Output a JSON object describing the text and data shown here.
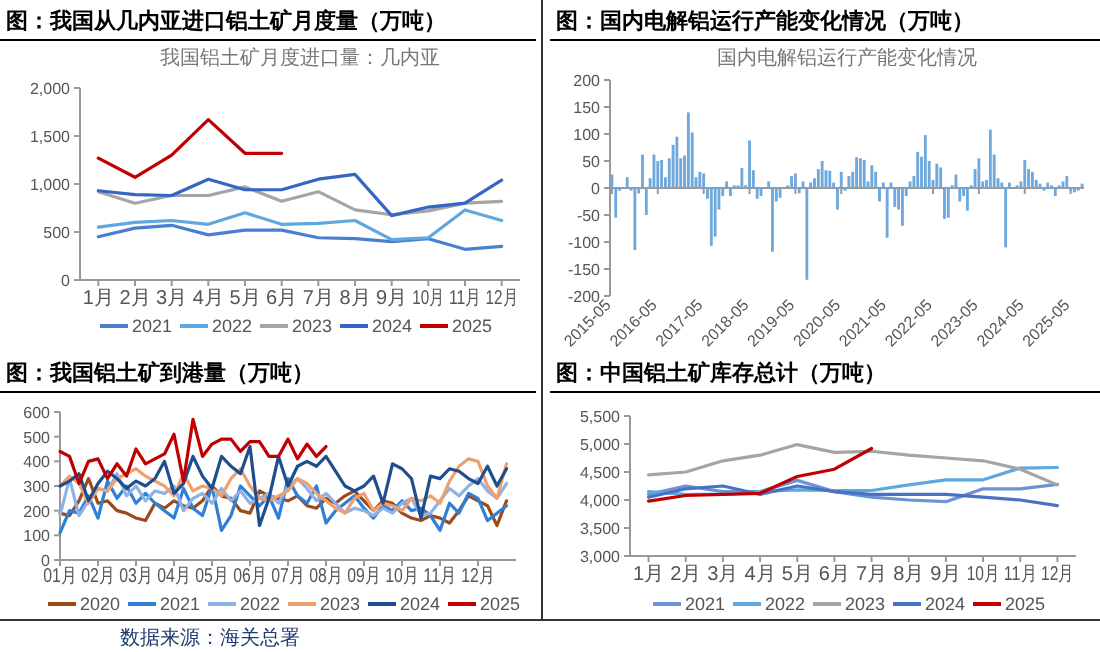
{
  "chart_data": [
    {
      "type": "line",
      "title": "图：我国从几内亚进口铝土矿月度量（万吨）",
      "subtitle": "我国铝土矿月度进口量：几内亚",
      "categories": [
        "1月",
        "2月",
        "3月",
        "4月",
        "5月",
        "6月",
        "7月",
        "8月",
        "9月",
        "10月",
        "11月",
        "12月"
      ],
      "ylim": [
        0,
        2000
      ],
      "yticks": [
        0,
        {
          "value": 500,
          "label": "500"
        },
        {
          "value": 1000,
          "label": "1,000"
        },
        {
          "value": 1500,
          "label": "1,500"
        },
        {
          "value": 2000,
          "label": "2,000"
        }
      ],
      "legend": "bottom",
      "series": [
        {
          "name": "2021",
          "color": "#4a7fd0",
          "values": [
            450,
            540,
            570,
            470,
            520,
            520,
            440,
            430,
            400,
            430,
            320,
            350
          ]
        },
        {
          "name": "2022",
          "color": "#5ea8e0",
          "values": [
            550,
            600,
            620,
            580,
            700,
            580,
            590,
            620,
            420,
            440,
            730,
            620
          ]
        },
        {
          "name": "2023",
          "color": "#a5a5a5",
          "values": [
            920,
            800,
            880,
            880,
            970,
            820,
            920,
            730,
            680,
            720,
            800,
            820
          ]
        },
        {
          "name": "2024",
          "color": "#3566c4",
          "values": [
            930,
            890,
            880,
            1050,
            940,
            940,
            1050,
            1100,
            670,
            760,
            800,
            1040
          ]
        },
        {
          "name": "2025",
          "color": "#c00000",
          "values": [
            1270,
            1070,
            1300,
            1670,
            1320,
            1320,
            null,
            null,
            null,
            null,
            null,
            null
          ]
        }
      ]
    },
    {
      "type": "bar",
      "title": "图：国内电解铝运行产能变化情况（万吨）",
      "subtitle": "国内电解铝运行产能变化情况",
      "color": "#6fa8dc",
      "categories": [
        "2015-05",
        null,
        null,
        null,
        null,
        null,
        null,
        null,
        null,
        null,
        null,
        null,
        "2016-05",
        null,
        null,
        null,
        null,
        null,
        null,
        null,
        null,
        null,
        null,
        null,
        "2017-05",
        null,
        null,
        null,
        null,
        null,
        null,
        null,
        null,
        null,
        null,
        null,
        "2018-05",
        null,
        null,
        null,
        null,
        null,
        null,
        null,
        null,
        null,
        null,
        null,
        "2019-05",
        null,
        null,
        null,
        null,
        null,
        null,
        null,
        null,
        null,
        null,
        null,
        "2020-05",
        null,
        null,
        null,
        null,
        null,
        null,
        null,
        null,
        null,
        null,
        null,
        "2021-05",
        null,
        null,
        null,
        null,
        null,
        null,
        null,
        null,
        null,
        null,
        null,
        "2022-05",
        null,
        null,
        null,
        null,
        null,
        null,
        null,
        null,
        null,
        null,
        null,
        "2023-05",
        null,
        null,
        null,
        null,
        null,
        null,
        null,
        null,
        null,
        null,
        null,
        "2024-05",
        null,
        null,
        null,
        null,
        null,
        null,
        null,
        null,
        null,
        null,
        null,
        "2025-05",
        null,
        null,
        null
      ],
      "ylim": [
        -200,
        200
      ],
      "yticks": [
        -200,
        -150,
        -100,
        -50,
        0,
        50,
        100,
        150,
        200
      ],
      "values": [
        25,
        -55,
        -5,
        0,
        20,
        -5,
        -115,
        -10,
        62,
        -50,
        18,
        62,
        50,
        52,
        20,
        55,
        80,
        95,
        55,
        60,
        140,
        103,
        20,
        30,
        27,
        -20,
        -107,
        -90,
        -40,
        -15,
        12,
        -15,
        5,
        5,
        37,
        5,
        88,
        33,
        -20,
        -15,
        0,
        12,
        -118,
        -25,
        -18,
        0,
        5,
        22,
        27,
        -10,
        12,
        -170,
        10,
        18,
        35,
        50,
        33,
        32,
        10,
        -40,
        30,
        -5,
        22,
        30,
        57,
        55,
        52,
        12,
        42,
        30,
        -25,
        10,
        -92,
        10,
        -35,
        -40,
        -70,
        -15,
        12,
        22,
        67,
        58,
        98,
        50,
        15,
        45,
        38,
        -57,
        -55,
        5,
        25,
        -25,
        -15,
        -42,
        5,
        35,
        55,
        12,
        15,
        108,
        62,
        18,
        10,
        -110,
        10,
        0,
        5,
        12,
        52,
        35,
        30,
        15,
        8,
        -5,
        10,
        5,
        -15,
        5,
        12,
        22,
        -5,
        -8,
        -5,
        8
      ]
    },
    {
      "type": "line",
      "title": "图：我国铝土矿到港量（万吨）",
      "categories": [
        "01月",
        null,
        null,
        null,
        "02月",
        null,
        null,
        null,
        "03月",
        null,
        null,
        null,
        "04月",
        null,
        null,
        null,
        "05月",
        null,
        null,
        null,
        "06月",
        null,
        null,
        null,
        "07月",
        null,
        null,
        null,
        "08月",
        null,
        null,
        null,
        "09月",
        null,
        null,
        null,
        "10月",
        null,
        null,
        null,
        "11月",
        null,
        null,
        null,
        "12月",
        null,
        null,
        null
      ],
      "ylim": [
        0,
        600
      ],
      "yticks": [
        0,
        100,
        200,
        300,
        400,
        500,
        600
      ],
      "legend": "bottom",
      "annotations": [
        "数据来源：海关总署"
      ],
      "series": [
        {
          "name": "2020",
          "color": "#9c4a1a",
          "values": [
            190,
            180,
            240,
            330,
            230,
            240,
            200,
            190,
            170,
            160,
            230,
            210,
            240,
            220,
            210,
            240,
            300,
            260,
            250,
            200,
            190,
            280,
            260,
            250,
            240,
            260,
            220,
            210,
            250,
            230,
            260,
            280,
            240,
            200,
            240,
            230,
            190,
            170,
            160,
            180,
            170,
            150,
            200,
            260,
            240,
            220,
            140,
            240
          ]
        },
        {
          "name": "2021",
          "color": "#2f7fd6",
          "values": [
            110,
            200,
            190,
            260,
            170,
            320,
            250,
            300,
            230,
            270,
            230,
            200,
            170,
            290,
            210,
            180,
            300,
            120,
            180,
            300,
            260,
            220,
            260,
            170,
            330,
            260,
            230,
            300,
            150,
            200,
            230,
            260,
            210,
            170,
            220,
            200,
            240,
            200,
            210,
            180,
            120,
            230,
            190,
            270,
            250,
            160,
            190,
            220
          ]
        },
        {
          "name": "2022",
          "color": "#8fb2e6",
          "values": [
            180,
            330,
            180,
            240,
            290,
            280,
            350,
            260,
            300,
            240,
            280,
            270,
            300,
            200,
            250,
            270,
            230,
            290,
            240,
            280,
            230,
            250,
            270,
            230,
            300,
            330,
            290,
            240,
            270,
            230,
            190,
            210,
            200,
            180,
            210,
            190,
            230,
            250,
            180,
            190,
            240,
            290,
            260,
            300,
            330,
            280,
            250,
            310
          ]
        },
        {
          "name": "2023",
          "color": "#f0a070",
          "values": [
            300,
            340,
            310,
            230,
            290,
            280,
            330,
            350,
            370,
            340,
            320,
            300,
            260,
            350,
            280,
            300,
            290,
            260,
            330,
            370,
            300,
            250,
            240,
            260,
            280,
            330,
            310,
            270,
            240,
            210,
            190,
            250,
            270,
            200,
            230,
            220,
            200,
            250,
            240,
            260,
            230,
            320,
            380,
            410,
            400,
            300,
            250,
            390
          ]
        },
        {
          "name": "2024",
          "color": "#1f4e8c",
          "values": [
            300,
            320,
            350,
            240,
            310,
            360,
            330,
            290,
            320,
            300,
            330,
            400,
            270,
            310,
            420,
            340,
            290,
            420,
            380,
            350,
            460,
            140,
            250,
            420,
            300,
            380,
            400,
            380,
            420,
            360,
            300,
            280,
            300,
            340,
            230,
            390,
            370,
            330,
            170,
            340,
            330,
            370,
            360,
            330,
            310,
            380,
            300,
            370
          ]
        },
        {
          "name": "2025",
          "color": "#c00000",
          "values": [
            440,
            420,
            310,
            400,
            410,
            330,
            390,
            340,
            450,
            390,
            410,
            430,
            510,
            320,
            570,
            420,
            470,
            490,
            490,
            440,
            480,
            480,
            420,
            420,
            490,
            410,
            470,
            420,
            460,
            null,
            null,
            null,
            null,
            null,
            null,
            null,
            null,
            null,
            null,
            null,
            null,
            null,
            null,
            null,
            null,
            null,
            null,
            null
          ]
        }
      ]
    },
    {
      "type": "line",
      "title": "图：中国铝土矿库存总计（万吨）",
      "categories": [
        "1月",
        "2月",
        "3月",
        "4月",
        "5月",
        "6月",
        "7月",
        "8月",
        "9月",
        "10月",
        "11月",
        "12月"
      ],
      "ylim": [
        3000,
        5500
      ],
      "yticks": [
        {
          "value": 3000,
          "label": "3,000"
        },
        {
          "value": 3500,
          "label": "3,500"
        },
        {
          "value": 4000,
          "label": "4,000"
        },
        {
          "value": 4500,
          "label": "4,500"
        },
        {
          "value": 5000,
          "label": "5,000"
        },
        {
          "value": 5500,
          "label": "5,500"
        }
      ],
      "legend": "bottom",
      "series": [
        {
          "name": "2021",
          "color": "#6b93d6",
          "values": [
            4100,
            4250,
            4150,
            4150,
            4350,
            4150,
            4050,
            4000,
            3970,
            4200,
            4200,
            4280
          ]
        },
        {
          "name": "2022",
          "color": "#5ea8e0",
          "values": [
            4150,
            4100,
            4100,
            4150,
            4180,
            4170,
            4170,
            4270,
            4360,
            4360,
            4570,
            4580
          ]
        },
        {
          "name": "2023",
          "color": "#a5a5a5",
          "values": [
            4450,
            4500,
            4700,
            4800,
            4990,
            4850,
            4870,
            4800,
            4750,
            4700,
            4550,
            4270
          ]
        },
        {
          "name": "2024",
          "color": "#4a72c4",
          "values": [
            4050,
            4200,
            4250,
            4100,
            4250,
            4150,
            4100,
            4100,
            4100,
            4050,
            4000,
            3900
          ]
        },
        {
          "name": "2025",
          "color": "#c00000",
          "values": [
            3980,
            4080,
            4100,
            4120,
            4420,
            4550,
            4920,
            null,
            null,
            null,
            null,
            null
          ]
        }
      ]
    }
  ]
}
